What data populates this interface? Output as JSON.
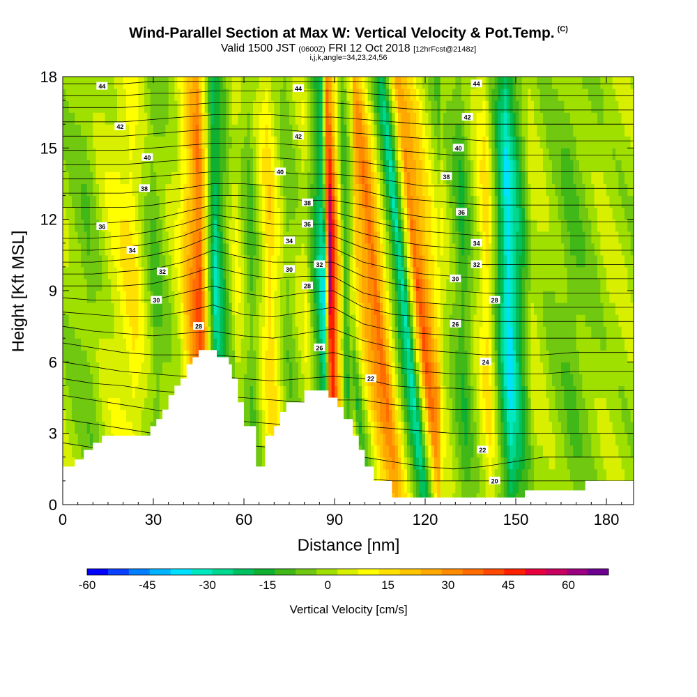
{
  "chart_data": {
    "type": "heatmap",
    "title": "Wind-Parallel Section at Max W: Vertical Velocity & Pot.Temp.",
    "copyright_mark": "(C)",
    "subtitle_main_1": "Valid 1500 JST",
    "subtitle_small_1": "(0600Z)",
    "subtitle_main_2": "FRI 12 Oct 2018",
    "subtitle_small_2": "[12hrFcst@2148z]",
    "subtitle_line3": "i,j,k,angle=34,23,24,56",
    "xlabel": "Distance [nm]",
    "ylabel": "Height [Kft MSL]",
    "xlim": [
      0,
      189
    ],
    "ylim": [
      0,
      18
    ],
    "x_ticks": [
      0,
      30,
      60,
      90,
      120,
      150,
      180
    ],
    "y_ticks": [
      0,
      3,
      6,
      9,
      12,
      15,
      18
    ],
    "colorbar": {
      "label": "Vertical Velocity [cm/s]",
      "range": [
        -60,
        70
      ],
      "tick_values": [
        -60,
        -45,
        -30,
        -15,
        0,
        15,
        30,
        45,
        60
      ],
      "tick_labels": [
        "-60",
        "-45",
        "-30",
        "-15",
        "0",
        "15",
        "30",
        "45",
        "60"
      ],
      "colors": [
        "#0000ff",
        "#0a40ff",
        "#0080ff",
        "#00b4ff",
        "#00e0ff",
        "#00e8c0",
        "#00d890",
        "#00c060",
        "#10b030",
        "#40b818",
        "#70c810",
        "#a0e000",
        "#d8f000",
        "#ffff00",
        "#ffe000",
        "#ffc400",
        "#ffa800",
        "#ff8c00",
        "#ff6c00",
        "#ff4800",
        "#ff2000",
        "#e8003c",
        "#c80060",
        "#9c0080",
        "#6c0090"
      ]
    },
    "velocity_features": [
      {
        "x": 0,
        "w": 0
      },
      {
        "x": 8,
        "w": -6
      },
      {
        "x": 14,
        "w": 4
      },
      {
        "x": 23,
        "w": 14
      },
      {
        "x": 30,
        "w": -9
      },
      {
        "x": 38,
        "w": 6
      },
      {
        "x": 45,
        "w": 42
      },
      {
        "x": 50,
        "w": -28
      },
      {
        "x": 57,
        "w": 8
      },
      {
        "x": 62,
        "w": -10
      },
      {
        "x": 68,
        "w": 18
      },
      {
        "x": 74,
        "w": -6
      },
      {
        "x": 80,
        "w": 6
      },
      {
        "x": 86,
        "w": -32
      },
      {
        "x": 88,
        "w": 62
      },
      {
        "x": 93,
        "w": -14
      },
      {
        "x": 98,
        "w": 20
      },
      {
        "x": 103,
        "w": 40
      },
      {
        "x": 112,
        "w": -34
      },
      {
        "x": 117,
        "w": 40
      },
      {
        "x": 125,
        "w": 6
      },
      {
        "x": 132,
        "w": -14
      },
      {
        "x": 140,
        "w": 16
      },
      {
        "x": 147,
        "w": -40
      },
      {
        "x": 155,
        "w": 4
      },
      {
        "x": 168,
        "w": -8
      },
      {
        "x": 180,
        "w": 2
      },
      {
        "x": 189,
        "w": 0
      }
    ],
    "theta_contours": [
      {
        "value": 20,
        "y": [
          2.6,
          2.4,
          2.2,
          2.0,
          1.8,
          1.6,
          1.5,
          1.4,
          1.3,
          1.2,
          1.1,
          1.0,
          1.0,
          1.0,
          1.0,
          1.0,
          1.0,
          1.0,
          1.0,
          1.0
        ]
      },
      {
        "value": 21,
        "y": [
          3.6,
          3.4,
          3.2,
          3.0,
          2.8,
          2.6,
          2.5,
          2.4,
          2.3,
          2.2,
          2.0,
          1.8,
          1.6,
          1.5,
          1.6,
          1.8,
          2.0,
          2.0,
          2.0,
          2.0
        ]
      },
      {
        "value": 22,
        "y": [
          4.6,
          4.4,
          4.2,
          4.0,
          3.8,
          3.6,
          3.5,
          3.4,
          3.3,
          3.3,
          3.3,
          3.2,
          3.1,
          3.0,
          3.0,
          3.0,
          3.0,
          3.0,
          3.0,
          3.0
        ]
      },
      {
        "value": 23,
        "y": [
          5.3,
          5.1,
          5.0,
          4.8,
          4.7,
          4.6,
          4.5,
          4.4,
          4.3,
          4.4,
          4.4,
          4.2,
          4.1,
          4.0,
          4.0,
          4.0,
          4.0,
          4.0,
          4.0,
          4.0
        ]
      },
      {
        "value": 24,
        "y": [
          6.0,
          5.8,
          5.6,
          5.5,
          5.4,
          5.4,
          5.3,
          5.2,
          5.3,
          5.4,
          5.3,
          5.0,
          4.9,
          4.9,
          4.8,
          4.8,
          4.8,
          4.8,
          4.8,
          4.8
        ]
      },
      {
        "value": 25,
        "y": [
          6.8,
          6.6,
          6.4,
          6.3,
          6.3,
          6.3,
          6.2,
          6.1,
          6.2,
          6.4,
          6.1,
          5.8,
          5.6,
          5.5,
          5.5,
          5.5,
          5.5,
          5.6,
          5.6,
          5.6
        ]
      },
      {
        "value": 26,
        "y": [
          7.5,
          7.3,
          7.2,
          7.1,
          7.2,
          7.3,
          7.1,
          7.0,
          7.2,
          7.4,
          6.9,
          6.6,
          6.5,
          6.4,
          6.3,
          6.3,
          6.3,
          6.4,
          6.4,
          6.4
        ]
      },
      {
        "value": 27,
        "y": [
          8.1,
          8.0,
          7.9,
          7.9,
          8.1,
          8.4,
          8.0,
          7.9,
          8.1,
          8.3,
          7.6,
          7.3,
          7.2,
          7.1,
          7.0,
          7.0,
          7.0,
          7.0,
          7.0,
          7.0
        ]
      },
      {
        "value": 28,
        "y": [
          8.7,
          8.6,
          8.6,
          8.6,
          8.9,
          9.2,
          8.9,
          8.7,
          8.9,
          9.0,
          8.3,
          8.0,
          7.9,
          7.8,
          7.7,
          7.7,
          7.7,
          7.7,
          7.7,
          7.7
        ]
      },
      {
        "value": 29,
        "y": [
          9.2,
          9.2,
          9.2,
          9.3,
          9.6,
          10.0,
          9.7,
          9.5,
          9.6,
          9.6,
          8.9,
          8.6,
          8.5,
          8.4,
          8.3,
          8.3,
          8.3,
          8.3,
          8.3,
          8.3
        ]
      },
      {
        "value": 30,
        "y": [
          9.7,
          9.7,
          9.8,
          9.9,
          10.2,
          10.7,
          10.4,
          10.2,
          10.2,
          10.2,
          9.6,
          9.3,
          9.1,
          9.0,
          8.9,
          8.9,
          8.9,
          8.9,
          8.9,
          8.9
        ]
      },
      {
        "value": 31,
        "y": [
          10.2,
          10.2,
          10.3,
          10.5,
          10.8,
          11.3,
          11.0,
          10.8,
          10.8,
          10.8,
          10.2,
          9.9,
          9.7,
          9.6,
          9.5,
          9.5,
          9.5,
          9.5,
          9.5,
          9.5
        ]
      },
      {
        "value": 32,
        "y": [
          10.7,
          10.7,
          10.8,
          11.0,
          11.3,
          11.8,
          11.5,
          11.3,
          11.3,
          11.3,
          10.8,
          10.5,
          10.3,
          10.2,
          10.1,
          10.1,
          10.1,
          10.1,
          10.1,
          10.1
        ]
      },
      {
        "value": 33,
        "y": [
          11.2,
          11.2,
          11.3,
          11.5,
          11.8,
          12.2,
          12.0,
          11.8,
          11.8,
          11.8,
          11.4,
          11.1,
          10.9,
          10.8,
          10.7,
          10.7,
          10.7,
          10.7,
          10.7,
          10.7
        ]
      },
      {
        "value": 34,
        "y": [
          11.8,
          11.8,
          11.9,
          12.0,
          12.3,
          12.6,
          12.5,
          12.3,
          12.3,
          12.3,
          12.0,
          11.7,
          11.5,
          11.4,
          11.3,
          11.3,
          11.3,
          11.3,
          11.3,
          11.3
        ]
      },
      {
        "value": 35,
        "y": [
          12.5,
          12.5,
          12.5,
          12.6,
          12.8,
          13.0,
          13.0,
          12.9,
          12.8,
          12.8,
          12.6,
          12.3,
          12.1,
          12.0,
          11.9,
          11.9,
          11.9,
          11.9,
          11.9,
          11.9
        ]
      },
      {
        "value": 36,
        "y": [
          13.1,
          13.1,
          13.1,
          13.2,
          13.3,
          13.5,
          13.5,
          13.4,
          13.3,
          13.3,
          13.2,
          12.9,
          12.8,
          12.7,
          12.6,
          12.6,
          12.6,
          12.6,
          12.6,
          12.6
        ]
      },
      {
        "value": 37,
        "y": [
          13.7,
          13.7,
          13.7,
          13.8,
          13.9,
          14.0,
          14.0,
          14.0,
          13.9,
          13.9,
          13.8,
          13.6,
          13.4,
          13.4,
          13.3,
          13.3,
          13.3,
          13.3,
          13.3,
          13.3
        ]
      },
      {
        "value": 38,
        "y": [
          14.3,
          14.3,
          14.3,
          14.4,
          14.5,
          14.6,
          14.6,
          14.6,
          14.5,
          14.5,
          14.4,
          14.2,
          14.1,
          14.0,
          14.0,
          14.0,
          14.0,
          14.0,
          14.0,
          14.0
        ]
      },
      {
        "value": 39,
        "y": [
          14.9,
          14.9,
          14.9,
          15.0,
          15.1,
          15.2,
          15.2,
          15.2,
          15.1,
          15.1,
          15.0,
          14.9,
          14.8,
          14.7,
          14.7,
          14.7,
          14.7,
          14.7,
          14.7,
          14.7
        ]
      },
      {
        "value": 40,
        "y": [
          15.5,
          15.5,
          15.5,
          15.6,
          15.7,
          15.8,
          15.8,
          15.8,
          15.7,
          15.7,
          15.6,
          15.5,
          15.4,
          15.4,
          15.3,
          15.3,
          15.3,
          15.3,
          15.3,
          15.3
        ]
      },
      {
        "value": 41,
        "y": [
          16.1,
          16.1,
          16.1,
          16.2,
          16.3,
          16.4,
          16.4,
          16.4,
          16.3,
          16.3,
          16.2,
          16.1,
          16.0,
          16.0,
          16.0,
          16.0,
          16.0,
          16.0,
          16.0,
          16.0
        ]
      },
      {
        "value": 42,
        "y": [
          16.7,
          16.7,
          16.7,
          16.8,
          16.8,
          16.9,
          16.9,
          16.9,
          16.9,
          16.9,
          16.8,
          16.7,
          16.6,
          16.6,
          16.6,
          16.6,
          16.6,
          16.6,
          16.6,
          16.6
        ]
      },
      {
        "value": 43,
        "y": [
          17.2,
          17.2,
          17.2,
          17.3,
          17.3,
          17.4,
          17.4,
          17.4,
          17.4,
          17.4,
          17.3,
          17.2,
          17.2,
          17.2,
          17.2,
          17.2,
          17.2,
          17.2,
          17.2,
          17.2
        ]
      },
      {
        "value": 44,
        "y": [
          17.7,
          17.7,
          17.7,
          17.8,
          17.8,
          17.8,
          17.8,
          17.8,
          17.8,
          17.8,
          17.8,
          17.7,
          17.7,
          17.7,
          17.7,
          17.7,
          17.7,
          17.7,
          17.7,
          17.7
        ]
      }
    ],
    "contour_labels": [
      {
        "text": "44",
        "x": 13,
        "y": 17.6
      },
      {
        "text": "44",
        "x": 78,
        "y": 17.5
      },
      {
        "text": "44",
        "x": 137,
        "y": 17.7
      },
      {
        "text": "42",
        "x": 19,
        "y": 15.9
      },
      {
        "text": "42",
        "x": 78,
        "y": 15.5
      },
      {
        "text": "42",
        "x": 134,
        "y": 16.3
      },
      {
        "text": "40",
        "x": 28,
        "y": 14.6
      },
      {
        "text": "40",
        "x": 72,
        "y": 14.0
      },
      {
        "text": "40",
        "x": 131,
        "y": 15.0
      },
      {
        "text": "38",
        "x": 27,
        "y": 13.3
      },
      {
        "text": "38",
        "x": 81,
        "y": 12.7
      },
      {
        "text": "38",
        "x": 127,
        "y": 13.8
      },
      {
        "text": "36",
        "x": 13,
        "y": 11.7
      },
      {
        "text": "36",
        "x": 81,
        "y": 11.8
      },
      {
        "text": "36",
        "x": 132,
        "y": 12.3
      },
      {
        "text": "34",
        "x": 23,
        "y": 10.7
      },
      {
        "text": "34",
        "x": 75,
        "y": 11.1
      },
      {
        "text": "34",
        "x": 137,
        "y": 11.0
      },
      {
        "text": "32",
        "x": 33,
        "y": 9.8
      },
      {
        "text": "32",
        "x": 85,
        "y": 10.1
      },
      {
        "text": "32",
        "x": 137,
        "y": 10.1
      },
      {
        "text": "30",
        "x": 31,
        "y": 8.6
      },
      {
        "text": "30",
        "x": 75,
        "y": 9.9
      },
      {
        "text": "30",
        "x": 130,
        "y": 9.5
      },
      {
        "text": "28",
        "x": 45,
        "y": 7.5
      },
      {
        "text": "28",
        "x": 81,
        "y": 9.2
      },
      {
        "text": "28",
        "x": 143,
        "y": 8.6
      },
      {
        "text": "26",
        "x": 130,
        "y": 7.6
      },
      {
        "text": "26",
        "x": 85,
        "y": 6.6
      },
      {
        "text": "24",
        "x": 140,
        "y": 6.0
      },
      {
        "text": "22",
        "x": 102,
        "y": 5.3
      },
      {
        "text": "22",
        "x": 139,
        "y": 2.3
      },
      {
        "text": "20",
        "x": 143,
        "y": 1.0
      }
    ],
    "terrain": [
      [
        0,
        1.6
      ],
      [
        4,
        1.6
      ],
      [
        4,
        1.9
      ],
      [
        7,
        1.9
      ],
      [
        7,
        2.3
      ],
      [
        10,
        2.3
      ],
      [
        10,
        2.6
      ],
      [
        13,
        2.6
      ],
      [
        13,
        2.9
      ],
      [
        18,
        2.9
      ],
      [
        18,
        2.9
      ],
      [
        29,
        2.9
      ],
      [
        29,
        3.3
      ],
      [
        31,
        3.3
      ],
      [
        31,
        3.6
      ],
      [
        33,
        3.6
      ],
      [
        33,
        4.0
      ],
      [
        35,
        4.0
      ],
      [
        35,
        4.6
      ],
      [
        37,
        4.6
      ],
      [
        37,
        5.0
      ],
      [
        39,
        5.0
      ],
      [
        39,
        5.3
      ],
      [
        41,
        5.3
      ],
      [
        41,
        5.9
      ],
      [
        43,
        5.9
      ],
      [
        43,
        6.2
      ],
      [
        45,
        6.2
      ],
      [
        45,
        6.5
      ],
      [
        51,
        6.5
      ],
      [
        51,
        6.2
      ],
      [
        55,
        6.2
      ],
      [
        55,
        5.9
      ],
      [
        56,
        5.9
      ],
      [
        56,
        5.3
      ],
      [
        58,
        5.3
      ],
      [
        58,
        4.3
      ],
      [
        60,
        4.3
      ],
      [
        60,
        3.3
      ],
      [
        64,
        3.3
      ],
      [
        64,
        1.6
      ],
      [
        67,
        1.6
      ],
      [
        67,
        2.9
      ],
      [
        70,
        2.9
      ],
      [
        70,
        3.3
      ],
      [
        72,
        3.3
      ],
      [
        72,
        3.9
      ],
      [
        74,
        3.9
      ],
      [
        74,
        4.3
      ],
      [
        80,
        4.3
      ],
      [
        80,
        4.8
      ],
      [
        88,
        4.8
      ],
      [
        88,
        4.5
      ],
      [
        91,
        4.5
      ],
      [
        91,
        4.1
      ],
      [
        93,
        4.1
      ],
      [
        93,
        3.6
      ],
      [
        96,
        3.6
      ],
      [
        96,
        2.9
      ],
      [
        98,
        2.9
      ],
      [
        98,
        2.3
      ],
      [
        100,
        2.3
      ],
      [
        100,
        1.6
      ],
      [
        103,
        1.6
      ],
      [
        103,
        1.0
      ],
      [
        109,
        1.0
      ],
      [
        109,
        0.3
      ],
      [
        153,
        0.3
      ],
      [
        153,
        0.6
      ],
      [
        173,
        0.6
      ],
      [
        173,
        1.0
      ],
      [
        189,
        1.0
      ]
    ]
  }
}
